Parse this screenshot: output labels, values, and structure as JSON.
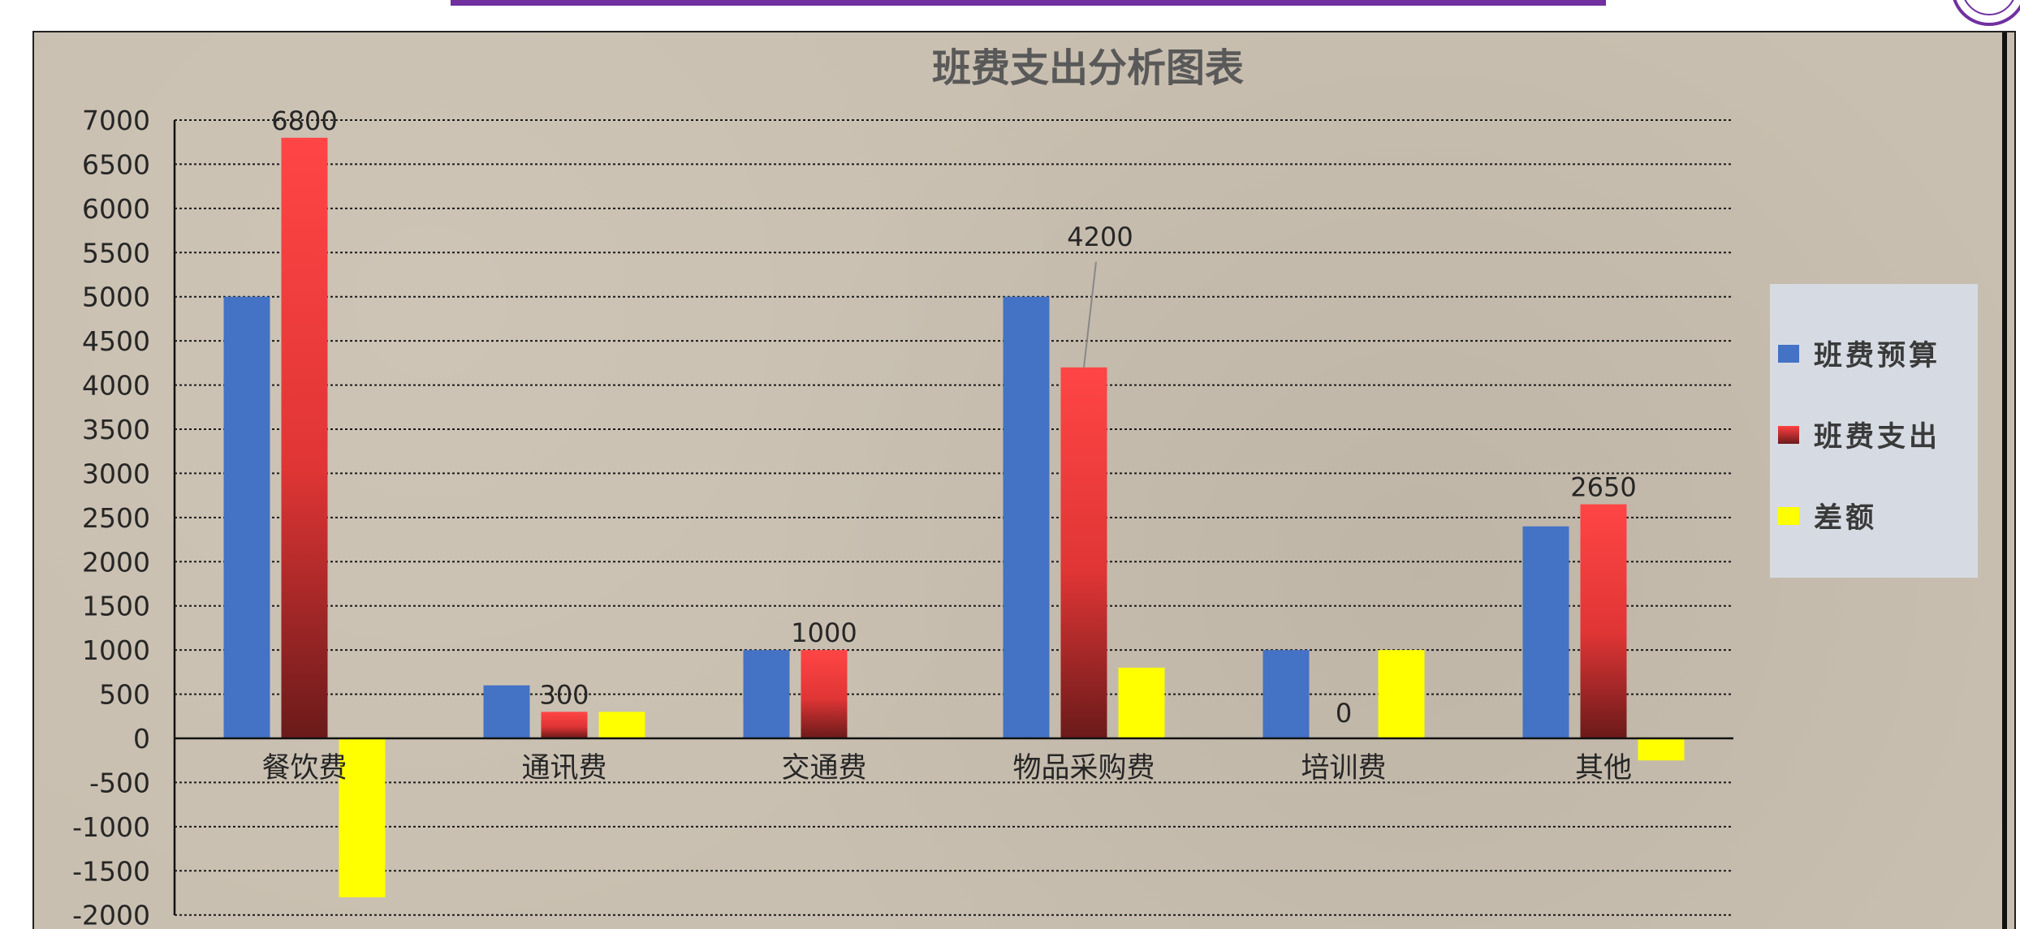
{
  "chart_data": {
    "type": "bar",
    "title": "班费支出分析图表",
    "categories": [
      "餐饮费",
      "通讯费",
      "交通费",
      "物品采购费",
      "培训费",
      "其他"
    ],
    "series": [
      {
        "name": "班费预算",
        "values": [
          5000,
          600,
          1000,
          5000,
          1000,
          2400
        ],
        "color": "#4472c4"
      },
      {
        "name": "班费支出",
        "values": [
          6800,
          300,
          1000,
          4200,
          0,
          2650
        ],
        "color": "#ff4040"
      },
      {
        "name": "差额",
        "values": [
          -1800,
          300,
          0,
          800,
          1000,
          -250
        ],
        "color": "#ffff00"
      }
    ],
    "data_labels": [
      "6800",
      "300",
      "1000",
      "4200",
      "0",
      "2650"
    ],
    "y_ticks": [
      "7000",
      "6500",
      "6000",
      "5500",
      "5000",
      "4500",
      "4000",
      "3500",
      "3000",
      "2500",
      "2000",
      "1500",
      "1000",
      "500",
      "0",
      "-500",
      "-1000",
      "-1500",
      "-2000"
    ],
    "ylim": [
      -2000,
      7000
    ],
    "grid": true,
    "legend_position": "right"
  }
}
